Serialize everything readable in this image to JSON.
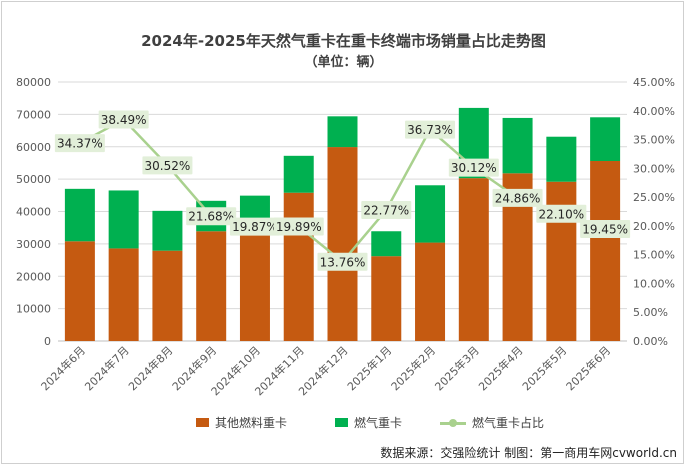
{
  "chart_data": {
    "type": "bar",
    "title": "2024年-2025年天然气重卡在重卡终端市场销量占比走势图",
    "subtitle": "（单位：辆）",
    "categories": [
      "2024年6月",
      "2024年7月",
      "2024年8月",
      "2024年9月",
      "2024年10月",
      "2024年11月",
      "2024年12月",
      "2025年1月",
      "2025年2月",
      "2025年3月",
      "2025年4月",
      "2025年5月",
      "2025年6月"
    ],
    "series": [
      {
        "name": "其他燃料重卡",
        "type": "bar",
        "stack": "total",
        "axis": "left",
        "color": "#c55a11",
        "values": [
          30800,
          28600,
          27900,
          33900,
          36000,
          45800,
          59900,
          26200,
          30400,
          50300,
          51800,
          49200,
          55600
        ]
      },
      {
        "name": "燃气重卡",
        "type": "bar",
        "stack": "total",
        "axis": "left",
        "color": "#00b050",
        "values": [
          16200,
          17900,
          12300,
          9400,
          8900,
          11400,
          9500,
          7700,
          17700,
          21700,
          17100,
          13900,
          13500
        ]
      },
      {
        "name": "燃气重卡占比",
        "type": "line",
        "axis": "right",
        "color": "#a9d18e",
        "values": [
          34.37,
          38.49,
          30.52,
          21.68,
          19.87,
          19.89,
          13.76,
          22.77,
          36.73,
          30.12,
          24.86,
          22.1,
          19.45
        ],
        "labels": [
          "34.37%",
          "38.49%",
          "30.52%",
          "21.68%",
          "19.87%",
          "19.89%",
          "13.76%",
          "22.77%",
          "36.73%",
          "30.12%",
          "24.86%",
          "22.10%",
          "19.45%"
        ]
      }
    ],
    "ylim_left": [
      0,
      80000
    ],
    "yticks_left": [
      "0",
      "10000",
      "20000",
      "30000",
      "40000",
      "50000",
      "60000",
      "70000",
      "80000"
    ],
    "ylim_right": [
      0,
      45
    ],
    "yticks_right": [
      "0.00%",
      "5.00%",
      "10.00%",
      "15.00%",
      "20.00%",
      "25.00%",
      "30.00%",
      "35.00%",
      "40.00%",
      "45.00%"
    ],
    "grid": true,
    "legend_position": "bottom",
    "source": "数据来源：交强险统计 制图：第一商用车网cvworld.cn"
  }
}
